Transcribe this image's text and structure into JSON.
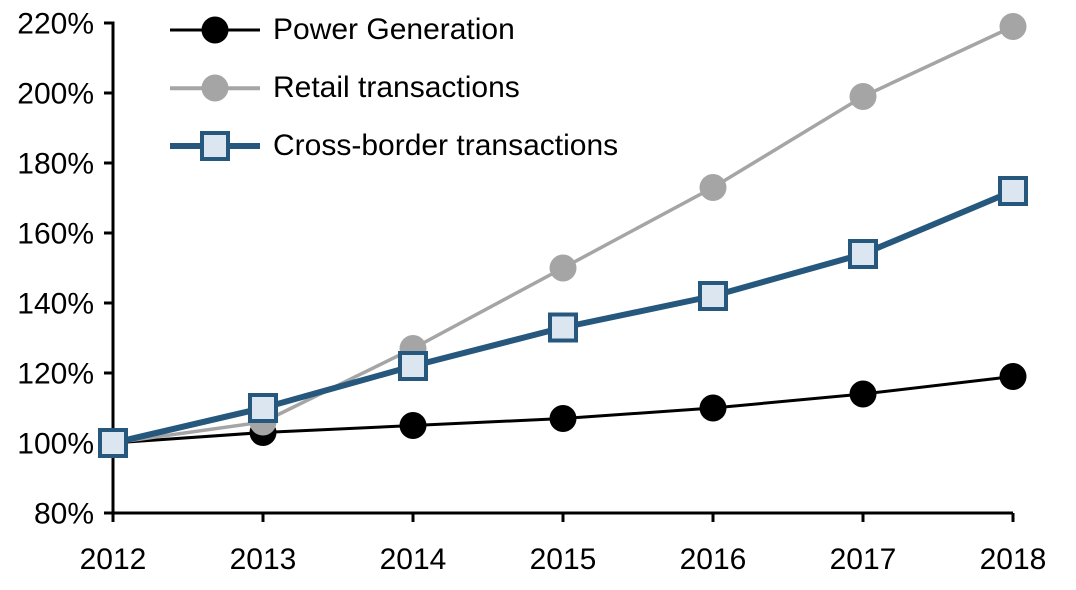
{
  "chart_data": {
    "type": "line",
    "title": "",
    "xlabel": "",
    "ylabel": "",
    "x": [
      "2012",
      "2013",
      "2014",
      "2015",
      "2016",
      "2017",
      "2018"
    ],
    "series": [
      {
        "name": "Power Generation",
        "values": [
          100,
          103,
          105,
          107,
          110,
          114,
          119
        ],
        "color": "#000000",
        "marker": "circle",
        "marker_fill": "#000000",
        "line_width": 3
      },
      {
        "name": "Retail transactions",
        "values": [
          100,
          106,
          127,
          150,
          173,
          199,
          219
        ],
        "color": "#a5a5a5",
        "marker": "circle",
        "marker_fill": "#a5a5a5",
        "line_width": 3.5
      },
      {
        "name": "Cross-border transactions",
        "values": [
          100,
          110,
          122,
          133,
          142,
          154,
          172
        ],
        "color": "#26587e",
        "marker": "square",
        "marker_fill": "#dce6f1",
        "line_width": 6
      }
    ],
    "ylim": [
      80,
      220
    ],
    "ytick_step": 20,
    "ytick_values": [
      80,
      100,
      120,
      140,
      160,
      180,
      200,
      220
    ],
    "ytick_labels": [
      "80%",
      "100%",
      "120%",
      "140%",
      "160%",
      "180%",
      "200%",
      "220%"
    ],
    "xtick_labels": [
      "2012",
      "2013",
      "2014",
      "2015",
      "2016",
      "2017",
      "2018"
    ],
    "grid": false,
    "legend_position": "top-left",
    "axis_color": "#000000",
    "background": "#ffffff"
  }
}
